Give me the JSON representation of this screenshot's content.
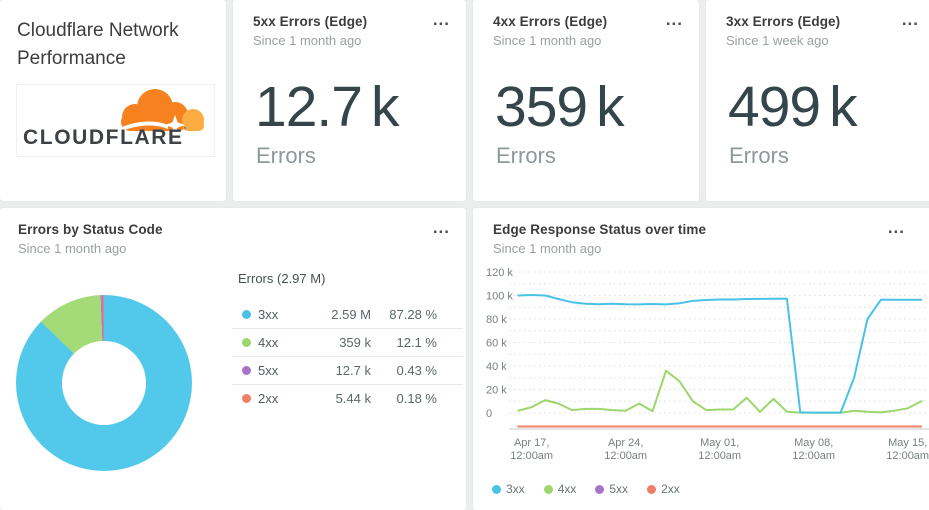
{
  "colors": {
    "c3xx": "#4ac2e6",
    "c4xx": "#9cd66c",
    "c5xx": "#a873c9",
    "c2xx": "#ef7f66",
    "grid": "#d9dddf",
    "axis": "#e2e5e5",
    "axis_text": "#787f80"
  },
  "title_card": {
    "title": "Cloudflare Network Performance",
    "logo_word": "CLOUDFLARE",
    "logo_tm": "’"
  },
  "stat_cards": [
    {
      "title": "5xx Errors (Edge)",
      "subtitle": "Since 1 month ago",
      "value": "12.7",
      "unit": "k",
      "label": "Errors",
      "menu": "..."
    },
    {
      "title": "4xx Errors (Edge)",
      "subtitle": "Since 1 month ago",
      "value": "359",
      "unit": "k",
      "label": "Errors",
      "menu": "..."
    },
    {
      "title": "3xx Errors (Edge)",
      "subtitle": "Since 1 week ago",
      "value": "499",
      "unit": "k",
      "label": "Errors",
      "menu": "..."
    }
  ],
  "donut_card": {
    "title": "Errors by Status Code",
    "subtitle": "Since 1 month ago",
    "menu": "...",
    "table_header": "Errors (2.97 M)",
    "rows": [
      {
        "label": "3xx",
        "value": "2.59 M",
        "pct": "87.28 %",
        "color": "#4ac2e6"
      },
      {
        "label": "4xx",
        "value": "359 k",
        "pct": "12.1 %",
        "color": "#9cd66c"
      },
      {
        "label": "5xx",
        "value": "12.7 k",
        "pct": "0.43 %",
        "color": "#a873c9"
      },
      {
        "label": "2xx",
        "value": "5.44 k",
        "pct": "0.18 %",
        "color": "#ef7f66"
      }
    ]
  },
  "line_card": {
    "title": "Edge Response Status over time",
    "subtitle": "Since 1 month ago",
    "menu": "..."
  },
  "chart_data": [
    {
      "type": "pie",
      "title": "Errors by Status Code",
      "total_label": "Errors (2.97 M)",
      "donut": true,
      "slices": [
        {
          "label": "3xx",
          "value": 2590000,
          "pct": 87.28,
          "color": "#52c9eb"
        },
        {
          "label": "4xx",
          "value": 359000,
          "pct": 12.1,
          "color": "#a5da79"
        },
        {
          "label": "5xx",
          "value": 12700,
          "pct": 0.43,
          "color": "#b279cf"
        },
        {
          "label": "2xx",
          "value": 5440,
          "pct": 0.18,
          "color": "#f4826a"
        }
      ]
    },
    {
      "type": "line",
      "title": "Edge Response Status over time",
      "unit": "k",
      "ylim": [
        0,
        120
      ],
      "grid": "dotted, every 10k",
      "legend_position": "bottom",
      "yticks": [
        {
          "v": 0,
          "label": "0"
        },
        {
          "v": 20,
          "label": "20 k"
        },
        {
          "v": 40,
          "label": "40 k"
        },
        {
          "v": 60,
          "label": "60 k"
        },
        {
          "v": 80,
          "label": "80 k"
        },
        {
          "v": 100,
          "label": "100 k"
        },
        {
          "v": 120,
          "label": "120 k"
        }
      ],
      "xticks": [
        {
          "line1": "Apr 17,",
          "line2": "12:00am"
        },
        {
          "line1": "Apr 24,",
          "line2": "12:00am"
        },
        {
          "line1": "May 01,",
          "line2": "12:00am"
        },
        {
          "line1": "May 08,",
          "line2": "12:00am"
        },
        {
          "line1": "May 15,",
          "line2": "12:00am"
        }
      ],
      "x_range": "Apr 16 - May 16, daily points",
      "series": [
        {
          "name": "5xx",
          "color": "#a873c9",
          "render_at_baseline": true,
          "values": [
            0.05,
            0.05,
            0.05,
            0.05,
            0.05,
            0.05,
            0.05,
            0.05,
            0.05,
            0.05,
            0.05,
            0.05,
            0.05,
            0.05,
            0.05,
            0.05,
            0.05,
            0.05,
            0.05,
            0.05,
            0.05,
            0.05,
            0.05,
            0.05,
            0.05,
            0.05,
            0.05,
            0.05,
            0.05,
            0.05,
            0.05
          ]
        },
        {
          "name": "2xx",
          "color": "#ef7f66",
          "render_at_baseline": true,
          "values": [
            0.15,
            0.15,
            0.2,
            0.15,
            0.15,
            0.15,
            0.15,
            0.15,
            0.15,
            0.2,
            0.15,
            0.15,
            0.15,
            0.15,
            0.15,
            0.15,
            0.15,
            0.15,
            0.15,
            0.15,
            0.15,
            0.15,
            0.1,
            0.1,
            0.1,
            0.15,
            0.15,
            0.2,
            0.15,
            0.15,
            0.15
          ]
        },
        {
          "name": "4xx",
          "color": "#9cd66c",
          "values": [
            2,
            5,
            11,
            8,
            2.5,
            3.5,
            3.5,
            2.5,
            2,
            8,
            1.5,
            36,
            27,
            10,
            2.5,
            3,
            3,
            13,
            1,
            12,
            1,
            0.3,
            0.2,
            0.2,
            0.2,
            2,
            1,
            0.5,
            2,
            4,
            10
          ]
        },
        {
          "name": "3xx",
          "color": "#4ac2e6",
          "values": [
            100,
            100.4,
            100,
            97,
            94.2,
            93,
            92.6,
            93,
            92.6,
            92.4,
            92.8,
            92.4,
            93.4,
            95.4,
            96.2,
            96.6,
            96.6,
            97,
            97.1,
            97.2,
            97.4,
            0.5,
            0.3,
            0.3,
            0.3,
            30,
            80,
            96.3,
            96.4,
            96.3,
            96.4
          ]
        }
      ],
      "legend_order": [
        "3xx",
        "4xx",
        "5xx",
        "2xx"
      ]
    }
  ]
}
